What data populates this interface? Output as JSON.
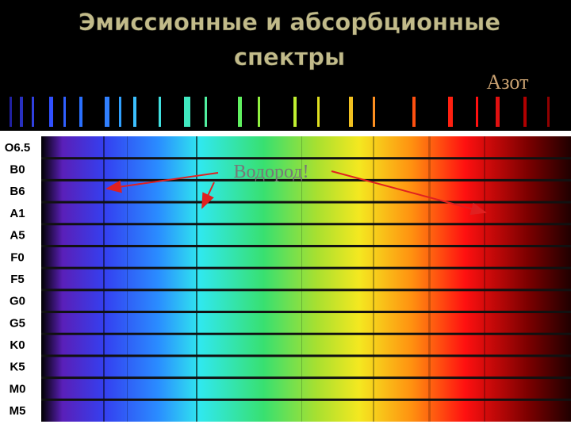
{
  "header": {
    "title_lines": [
      "Эмиссионные и абсорбционные",
      "спектры"
    ]
  },
  "labels": {
    "nitrogen": "Азот",
    "hydrogen": "Водород!"
  },
  "spectral_classes": [
    "O6.5",
    "B0",
    "B6",
    "A1",
    "A5",
    "F0",
    "F5",
    "G0",
    "G5",
    "K0",
    "K5",
    "M0",
    "M5"
  ]
}
